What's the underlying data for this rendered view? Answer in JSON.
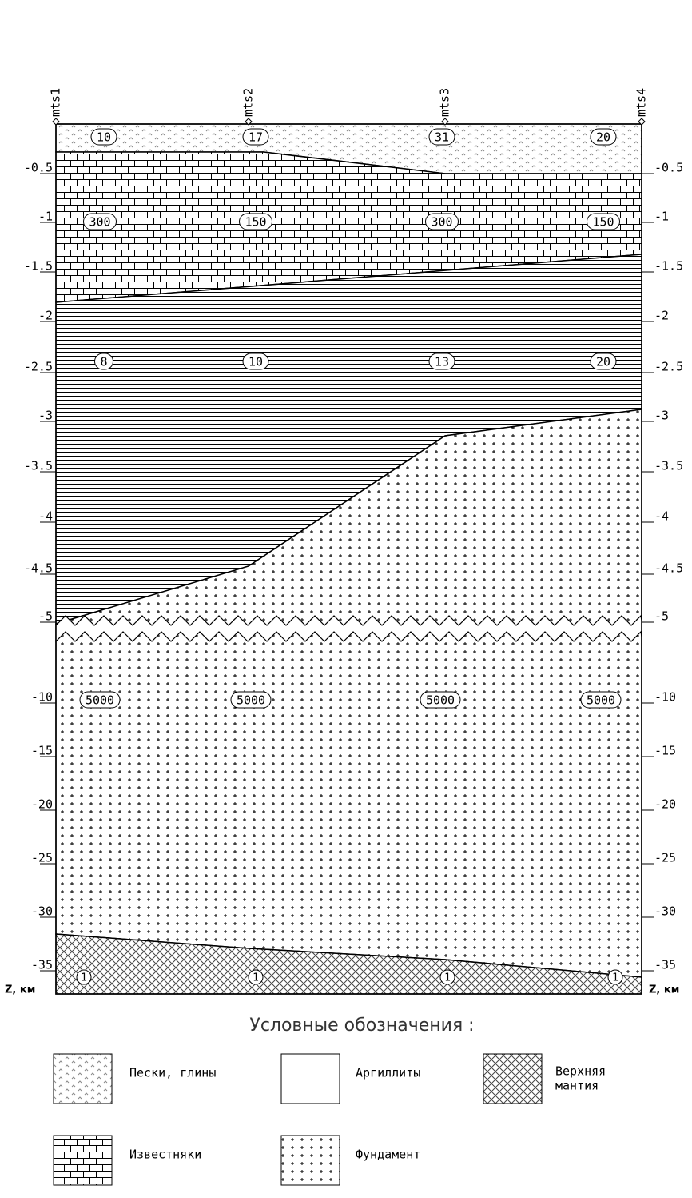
{
  "stations": [
    "mts1",
    "mts2",
    "mts3",
    "mts4"
  ],
  "depth_ticks": [
    "-0.5",
    "-1",
    "-1.5",
    "-2",
    "-2.5",
    "-3",
    "-3.5",
    "-4",
    "-4.5",
    "-5",
    "-10",
    "-15",
    "-20",
    "-25",
    "-30",
    "-35"
  ],
  "axis_label": "Z, км",
  "legend_title": "Условные обозначения :",
  "layers": [
    {
      "name": "Пески, глины",
      "values": [
        10,
        17,
        31,
        20
      ]
    },
    {
      "name": "Известняки",
      "values": [
        300,
        150,
        300,
        150
      ]
    },
    {
      "name": "Аргиллиты",
      "values": [
        8,
        10,
        13,
        20
      ]
    },
    {
      "name": "Фундамент",
      "values": [
        5000,
        5000,
        5000,
        5000
      ]
    },
    {
      "name": [
        "Верхняя",
        "мантия"
      ],
      "values": [
        1,
        1,
        1,
        1
      ]
    }
  ]
}
